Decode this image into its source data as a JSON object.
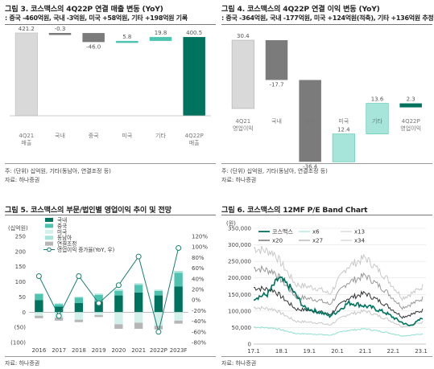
{
  "fig3": {
    "title": "그림 3. 코스맥스의 4Q22P 연결 매출 변동 (YoY)",
    "subtitle": ": 중국 -460억원, 국내 -3억원, 미국 +58억원, 기타 +198억원 기록",
    "note1": "주: (단위) 십억원, 기타(동남아, 연결조정 등)",
    "note2": "자료: 하나증권"
  },
  "fig4": {
    "title": "그림 4. 코스맥스의 4Q22P 연결 이익 변동 (YoY)",
    "subtitle": ": 중국 -364억원, 국내 -177억원, 미국 +124억원(적축), 기타 +136억원 추정",
    "note1": "주: (단위) 십억원, 기타(동남아, 연결조정 등)",
    "note2": "자료: 하나증권"
  },
  "fig5": {
    "title": "그림 5. 코스맥스의 부문/법인별 영업이익 추이 및 전망",
    "note": "자료: 하나증권"
  },
  "fig6": {
    "title": "그림 6. 코스맥스의 12MF P/E Band Chart",
    "note": "자료: 하나증권"
  },
  "colors": {
    "teal_dark": "#00735f",
    "teal_mid": "#4ec4b0",
    "teal_light": "#a7e4da",
    "teal_pale": "#d4f0eb",
    "grey": "#7b7b7b",
    "grey_light": "#d8d8d8"
  },
  "chart_data": [
    {
      "id": "fig3",
      "type": "waterfall",
      "categories": [
        "4Q21\n매출",
        "국내",
        "중국",
        "미국",
        "기타",
        "4Q22P\n매출"
      ],
      "values": [
        421.2,
        -0.3,
        -46.0,
        5.8,
        19.8,
        400.5
      ],
      "labels": [
        "421.2",
        "-0.3",
        "-46.0",
        "5.8",
        "19.8",
        "400.5"
      ]
    },
    {
      "id": "fig4",
      "type": "waterfall",
      "categories": [
        "4Q21\n영업이익",
        "국내",
        "중국",
        "미국",
        "기타",
        "4Q22P\n영업이익"
      ],
      "values": [
        30.4,
        -17.7,
        -36.4,
        12.4,
        13.6,
        2.3
      ],
      "labels": [
        "30.4",
        "-17.7",
        "-36.4",
        "12.4",
        "13.6",
        "2.3"
      ]
    },
    {
      "id": "fig5",
      "type": "bar+line",
      "unit_label": "(십억원)",
      "categories": [
        "2016",
        "2017",
        "2018",
        "2019",
        "2020",
        "2021",
        "2022P",
        "2023F"
      ],
      "legend": [
        "국내",
        "중국",
        "미국",
        "동남아",
        "연결조정",
        "영업이익 증가율(YoY, 우)"
      ],
      "series": [
        {
          "name": "국내",
          "values": [
            40,
            18,
            30,
            35,
            55,
            65,
            55,
            85
          ]
        },
        {
          "name": "중국",
          "values": [
            20,
            8,
            18,
            22,
            15,
            25,
            15,
            45
          ]
        },
        {
          "name": "미국",
          "values": [
            -12,
            -18,
            -25,
            -10,
            -40,
            -35,
            -45,
            -28
          ]
        },
        {
          "name": "동남아",
          "values": [
            2,
            3,
            3,
            4,
            5,
            5,
            4,
            6
          ]
        },
        {
          "name": "연결조정",
          "values": [
            -8,
            -10,
            -8,
            -6,
            -15,
            -20,
            -12,
            -10
          ]
        },
        {
          "name": "영업이익 증가율(YoY, 우)",
          "axis": "right",
          "values": [
            45,
            -30,
            45,
            -6,
            28,
            82,
            -60,
            98
          ]
        }
      ],
      "y_left": {
        "ticks": [
          -100,
          -50,
          0,
          50,
          100,
          150,
          200,
          250
        ]
      },
      "y_right": {
        "ticks": [
          "-80%",
          "-60%",
          "-40%",
          "-20%",
          "0%",
          "20%",
          "40%",
          "60%",
          "80%",
          "100%",
          "120%"
        ]
      }
    },
    {
      "id": "fig6",
      "type": "line",
      "unit_label": "(원)",
      "x_ticks": [
        "17.1",
        "18.1",
        "19.1",
        "20.1",
        "21.1",
        "22.1",
        "23.1"
      ],
      "y_ticks": [
        "0",
        "50,000",
        "100,000",
        "150,000",
        "200,000",
        "250,000",
        "300,000",
        "350,000"
      ],
      "legend": [
        "코스맥스",
        "x6",
        "x13",
        "x20",
        "x27",
        "x34"
      ],
      "series_names": [
        "코스맥스",
        "x6",
        "x13",
        "x20",
        "x27",
        "x34"
      ]
    }
  ]
}
